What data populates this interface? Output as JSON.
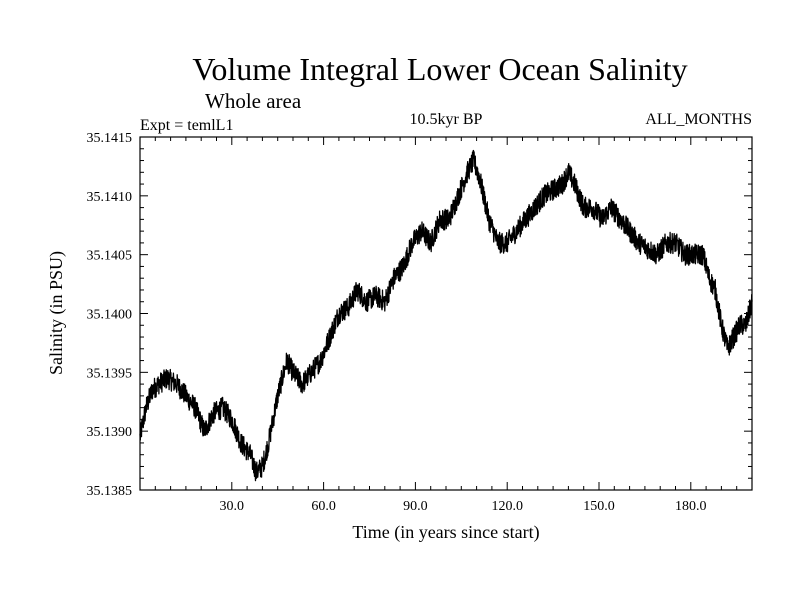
{
  "chart_data": {
    "type": "line",
    "title": "Volume Integral Lower Ocean Salinity",
    "subtitle": "Whole area",
    "header_left": "Expt = temlL1",
    "header_center": "10.5kyr BP",
    "header_right": "ALL_MONTHS",
    "xlabel": "Time (in years since start)",
    "ylabel": "Salinity (in PSU)",
    "xlim": [
      0,
      200
    ],
    "ylim": [
      35.1385,
      35.1415
    ],
    "x_ticks": [
      30,
      60,
      90,
      120,
      150,
      180
    ],
    "x_tick_labels": [
      "30.0",
      "60.0",
      "90.0",
      "120.0",
      "150.0",
      "180.0"
    ],
    "y_ticks": [
      35.1385,
      35.139,
      35.1395,
      35.14,
      35.1405,
      35.141,
      35.1415
    ],
    "y_tick_labels": [
      "35.1385",
      "35.1390",
      "35.1395",
      "35.1400",
      "35.1405",
      "35.1410",
      "35.1415"
    ],
    "line_color": "#000000",
    "series": [
      {
        "name": "salinity",
        "x": [
          0,
          2,
          4,
          6,
          9,
          12,
          15,
          18,
          21,
          24,
          27,
          30,
          33,
          36,
          38,
          40,
          42,
          45,
          48,
          50,
          53,
          56,
          59,
          62,
          65,
          68,
          71,
          74,
          77,
          80,
          83,
          86,
          89,
          92,
          95,
          98,
          101,
          104,
          107,
          109,
          111,
          114,
          117,
          120,
          123,
          126,
          129,
          132,
          135,
          138,
          140,
          142,
          145,
          148,
          151,
          154,
          157,
          160,
          163,
          166,
          169,
          172,
          175,
          178,
          181,
          184,
          186,
          188,
          190,
          192,
          194,
          196,
          198,
          200
        ],
        "y": [
          35.13895,
          35.1392,
          35.13935,
          35.1394,
          35.13945,
          35.1394,
          35.1393,
          35.1392,
          35.139,
          35.13915,
          35.1392,
          35.1391,
          35.1389,
          35.1388,
          35.13865,
          35.1387,
          35.1389,
          35.1393,
          35.1396,
          35.1395,
          35.1394,
          35.1395,
          35.1396,
          35.1398,
          35.14,
          35.14005,
          35.1402,
          35.1401,
          35.14015,
          35.1401,
          35.1403,
          35.1404,
          35.1406,
          35.1407,
          35.1406,
          35.1408,
          35.1408,
          35.141,
          35.1412,
          35.1413,
          35.14115,
          35.1408,
          35.1406,
          35.1406,
          35.1407,
          35.1408,
          35.1409,
          35.141,
          35.14105,
          35.1411,
          35.1412,
          35.1411,
          35.1409,
          35.1409,
          35.1408,
          35.1409,
          35.1408,
          35.1407,
          35.1406,
          35.14055,
          35.1405,
          35.1406,
          35.1406,
          35.1405,
          35.1405,
          35.1405,
          35.1403,
          35.1402,
          35.1399,
          35.1397,
          35.1398,
          35.1399,
          35.1399,
          35.1401
        ]
      }
    ]
  }
}
